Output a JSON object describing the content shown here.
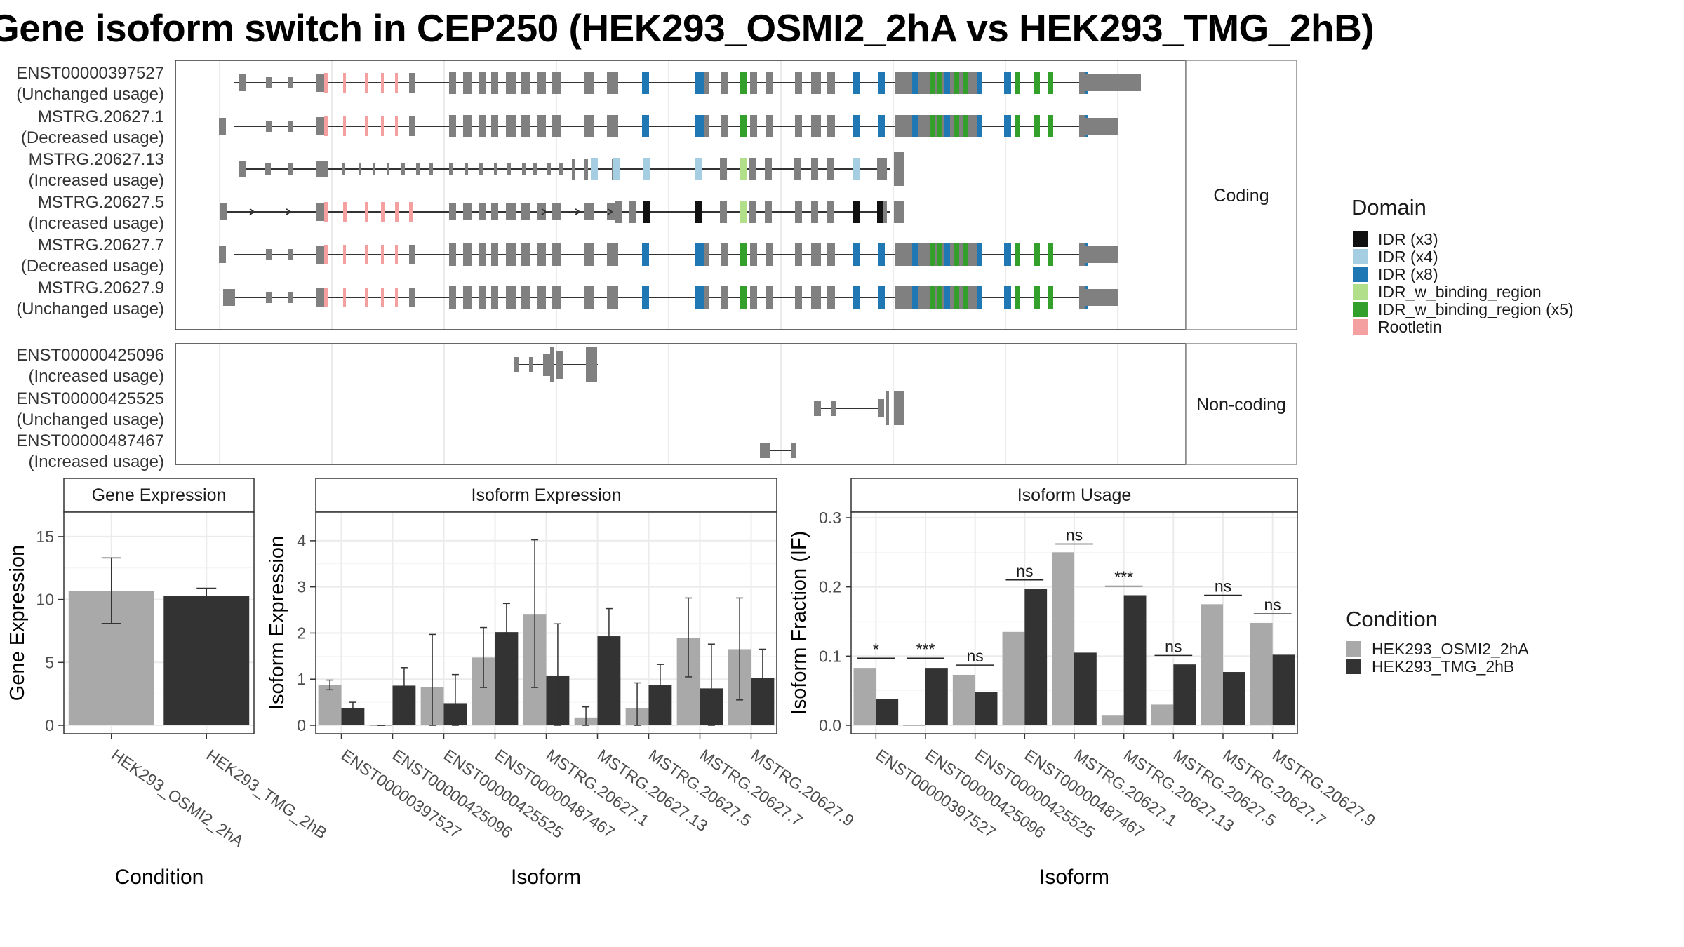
{
  "title": "Gene isoform switch in CEP250 (HEK293_OSMI2_2hA vs HEK293_TMG_2hB)",
  "colors": {
    "grey_exon": "#808080",
    "idr_x3": "#111111",
    "idr_x4": "#a6cee3",
    "idr_x8": "#1f78b4",
    "idr_bind": "#b2df8a",
    "idr_bind_x5": "#33a02c",
    "rootletin": "#f4a0a0",
    "cond_a": "#a9a9a9",
    "cond_b": "#333333"
  },
  "structure": {
    "coding_strip": "Coding",
    "noncoding_strip": "Non-coding",
    "coding": [
      {
        "id": "ENST00000397527",
        "usage": "(Unchanged usage)",
        "type": "full",
        "utr3": "long"
      },
      {
        "id": "MSTRG.20627.1",
        "usage": "(Decreased usage)",
        "type": "full",
        "utr3": "short",
        "startExon": "early"
      },
      {
        "id": "MSTRG.20627.13",
        "usage": "(Increased usage)",
        "type": "trunc13"
      },
      {
        "id": "MSTRG.20627.5",
        "usage": "(Increased usage)",
        "type": "trunc5"
      },
      {
        "id": "MSTRG.20627.7",
        "usage": "(Decreased usage)",
        "type": "full",
        "utr3": "short",
        "startExon": "early"
      },
      {
        "id": "MSTRG.20627.9",
        "usage": "(Unchanged usage)",
        "type": "full",
        "utr3": "short",
        "startExon": "wide"
      }
    ],
    "noncoding": [
      {
        "id": "ENST00000425096",
        "usage": "(Increased usage)",
        "type": "nc1"
      },
      {
        "id": "ENST00000425525",
        "usage": "(Unchanged usage)",
        "type": "nc2"
      },
      {
        "id": "ENST00000487467",
        "usage": "(Increased usage)",
        "type": "nc3"
      }
    ]
  },
  "legend_domain": {
    "title": "Domain",
    "items": [
      {
        "label": "IDR (x3)",
        "color": "#111111"
      },
      {
        "label": "IDR (x4)",
        "color": "#a6cee3"
      },
      {
        "label": "IDR (x8)",
        "color": "#1f78b4"
      },
      {
        "label": "IDR_w_binding_region",
        "color": "#b2df8a"
      },
      {
        "label": "IDR_w_binding_region (x5)",
        "color": "#33a02c"
      },
      {
        "label": "Rootletin",
        "color": "#f4a0a0"
      }
    ]
  },
  "legend_condition": {
    "title": "Condition",
    "items": [
      {
        "label": "HEK293_OSMI2_2hA",
        "color": "#a9a9a9"
      },
      {
        "label": "HEK293_TMG_2hB",
        "color": "#333333"
      }
    ]
  },
  "chart_data": [
    {
      "type": "bar",
      "title": "Gene Expression",
      "xlabel": "Condition",
      "ylabel": "Gene Expression",
      "ylim": [
        0,
        16.5
      ],
      "yticks": [
        0,
        5,
        10,
        15
      ],
      "categories": [
        "HEK293_OSMI2_2hA",
        "HEK293_TMG_2hB"
      ],
      "values": [
        10.7,
        10.3
      ],
      "err_low": [
        8.1,
        9.7
      ],
      "err_high": [
        13.3,
        10.9
      ]
    },
    {
      "type": "bar",
      "title": "Isoform Expression",
      "xlabel": "Isoform",
      "ylabel": "Isoform Expression",
      "ylim": [
        0,
        4.5
      ],
      "yticks": [
        0,
        1,
        2,
        3,
        4
      ],
      "categories": [
        "ENST00000397527",
        "ENST00000425096",
        "ENST00000425525",
        "ENST00000487467",
        "MSTRG.20627.1",
        "MSTRG.20627.13",
        "MSTRG.20627.5",
        "MSTRG.20627.7",
        "MSTRG.20627.9"
      ],
      "series": [
        {
          "name": "HEK293_OSMI2_2hA",
          "values": [
            0.87,
            0.0,
            0.83,
            1.47,
            2.4,
            0.17,
            0.37,
            1.9,
            1.65
          ],
          "err_low": [
            0.77,
            0.0,
            0.0,
            0.82,
            0.82,
            0.0,
            0.0,
            1.05,
            0.55
          ],
          "err_high": [
            0.98,
            0.0,
            1.97,
            2.12,
            4.02,
            0.4,
            0.92,
            2.76,
            2.76
          ]
        },
        {
          "name": "HEK293_TMG_2hB",
          "values": [
            0.37,
            0.86,
            0.48,
            2.02,
            1.08,
            1.93,
            0.87,
            0.8,
            1.02
          ],
          "err_low": [
            0.27,
            0.52,
            0.0,
            1.4,
            0.0,
            1.32,
            0.42,
            0.0,
            0.4
          ],
          "err_high": [
            0.5,
            1.25,
            1.1,
            2.64,
            2.2,
            2.53,
            1.32,
            1.76,
            1.65
          ]
        }
      ]
    },
    {
      "type": "bar",
      "title": "Isoform Usage",
      "xlabel": "Isoform",
      "ylabel": "Isoform Fraction (IF)",
      "ylim": [
        0,
        0.3
      ],
      "yticks": [
        0.0,
        0.1,
        0.2,
        0.3
      ],
      "ytick_labels": [
        "0.0",
        "0.1",
        "0.2",
        "0.3"
      ],
      "categories": [
        "ENST00000397527",
        "ENST00000425096",
        "ENST00000425525",
        "ENST00000487467",
        "MSTRG.20627.1",
        "MSTRG.20627.13",
        "MSTRG.20627.5",
        "MSTRG.20627.7",
        "MSTRG.20627.9"
      ],
      "series": [
        {
          "name": "HEK293_OSMI2_2hA",
          "values": [
            0.083,
            0.0,
            0.073,
            0.135,
            0.25,
            0.015,
            0.03,
            0.175,
            0.148
          ]
        },
        {
          "name": "HEK293_TMG_2hB",
          "values": [
            0.038,
            0.083,
            0.048,
            0.197,
            0.105,
            0.188,
            0.088,
            0.077,
            0.102
          ]
        }
      ],
      "significance": [
        "*",
        "***",
        "ns",
        "ns",
        "ns",
        "***",
        "ns",
        "ns",
        "ns"
      ],
      "sig_y": [
        0.097,
        0.097,
        0.087,
        0.21,
        0.262,
        0.201,
        0.101,
        0.188,
        0.161
      ]
    }
  ]
}
